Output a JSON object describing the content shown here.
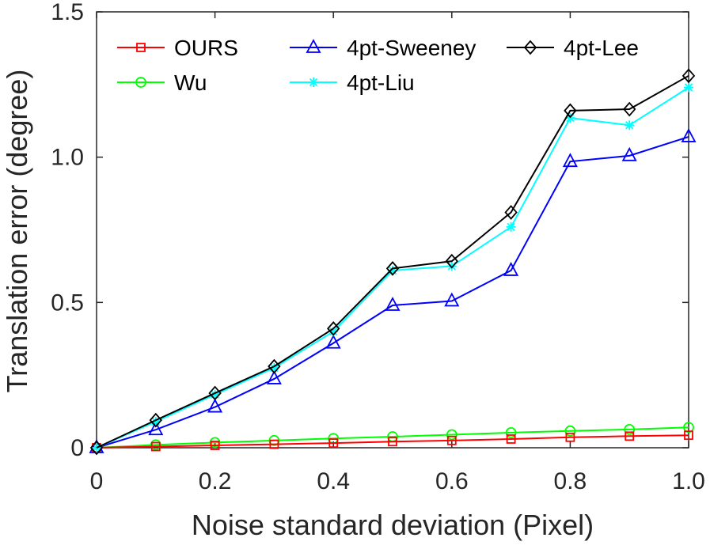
{
  "chart_data": {
    "type": "line",
    "title": "",
    "xlabel": "Noise standard deviation (Pixel)",
    "ylabel": "Translation error (degree)",
    "xlim": [
      0,
      1.0
    ],
    "ylim": [
      0,
      1.5
    ],
    "x_ticks": [
      0,
      0.2,
      0.4,
      0.6,
      0.8,
      1.0
    ],
    "x_tick_labels": [
      "0",
      "0.2",
      "0.4",
      "0.6",
      "0.8",
      "1.0"
    ],
    "y_ticks": [
      0,
      0.5,
      1.0,
      1.5
    ],
    "y_tick_labels": [
      "0",
      "0.5",
      "1.0",
      "1.5"
    ],
    "grid": false,
    "legend_position": "top-left",
    "x": [
      0,
      0.1,
      0.2,
      0.3,
      0.4,
      0.5,
      0.6,
      0.7,
      0.8,
      0.9,
      1.0
    ],
    "series": [
      {
        "name": "OURS",
        "color": "#ff0000",
        "marker": "square",
        "values": [
          0,
          0.004,
          0.008,
          0.012,
          0.016,
          0.021,
          0.025,
          0.03,
          0.036,
          0.04,
          0.043
        ]
      },
      {
        "name": "4pt-Sweeney",
        "color": "#0000ff",
        "marker": "triangle",
        "values": [
          0,
          0.062,
          0.14,
          0.237,
          0.36,
          0.49,
          0.505,
          0.61,
          0.985,
          1.005,
          1.07
        ]
      },
      {
        "name": "4pt-Lee",
        "color": "#000000",
        "marker": "diamond",
        "values": [
          0,
          0.095,
          0.188,
          0.28,
          0.41,
          0.617,
          0.642,
          0.81,
          1.16,
          1.165,
          1.28
        ]
      },
      {
        "name": "Wu",
        "color": "#00ff00",
        "marker": "circle",
        "values": [
          0,
          0.01,
          0.018,
          0.025,
          0.032,
          0.038,
          0.045,
          0.052,
          0.058,
          0.063,
          0.07
        ]
      },
      {
        "name": "4pt-Liu",
        "color": "#00ffff",
        "marker": "asterisk",
        "values": [
          0,
          0.09,
          0.183,
          0.275,
          0.4,
          0.61,
          0.625,
          0.76,
          1.135,
          1.11,
          1.24
        ]
      }
    ]
  }
}
